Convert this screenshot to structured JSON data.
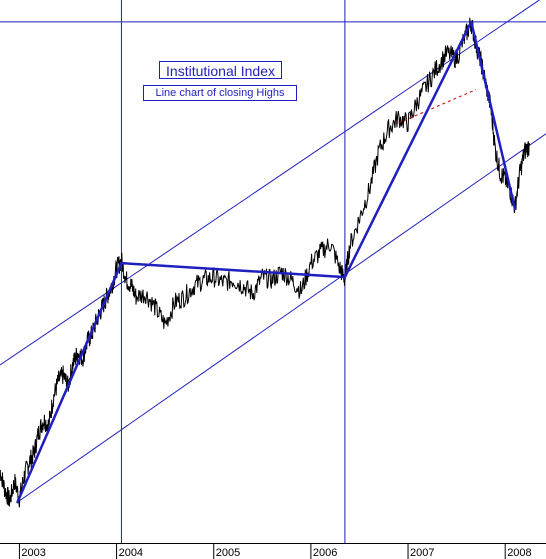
{
  "chart_data": {
    "type": "line",
    "title": "Institutional Index",
    "subtitle": "Line chart of closing Highs",
    "x_tick_labels": [
      "2003",
      "2004",
      "2005",
      "2006",
      "2007",
      "2008"
    ],
    "x_range": [
      2002.8,
      2008.42
    ],
    "series": [
      {
        "values_by_year": [
          [
            2002.8,
            430
          ],
          [
            2002.85,
            395
          ],
          [
            2002.9,
            375
          ],
          [
            2002.95,
            410
          ],
          [
            2003.0,
            380
          ],
          [
            2003.05,
            420
          ],
          [
            2003.1,
            445
          ],
          [
            2003.15,
            460
          ],
          [
            2003.2,
            500
          ],
          [
            2003.25,
            520
          ],
          [
            2003.3,
            510
          ],
          [
            2003.35,
            560
          ],
          [
            2003.4,
            590
          ],
          [
            2003.45,
            600
          ],
          [
            2003.5,
            580
          ],
          [
            2003.55,
            620
          ],
          [
            2003.6,
            640
          ],
          [
            2003.65,
            630
          ],
          [
            2003.7,
            660
          ],
          [
            2003.75,
            675
          ],
          [
            2003.8,
            700
          ],
          [
            2003.85,
            720
          ],
          [
            2003.9,
            740
          ],
          [
            2003.95,
            760
          ],
          [
            2004.0,
            790
          ],
          [
            2004.05,
            805
          ],
          [
            2004.1,
            770
          ],
          [
            2004.15,
            760
          ],
          [
            2004.2,
            740
          ],
          [
            2004.3,
            745
          ],
          [
            2004.4,
            720
          ],
          [
            2004.5,
            690
          ],
          [
            2004.6,
            730
          ],
          [
            2004.7,
            740
          ],
          [
            2004.8,
            760
          ],
          [
            2004.9,
            770
          ],
          [
            2005.0,
            775
          ],
          [
            2005.1,
            765
          ],
          [
            2005.2,
            770
          ],
          [
            2005.3,
            760
          ],
          [
            2005.4,
            745
          ],
          [
            2005.5,
            775
          ],
          [
            2005.6,
            770
          ],
          [
            2005.7,
            785
          ],
          [
            2005.8,
            770
          ],
          [
            2005.9,
            750
          ],
          [
            2006.0,
            800
          ],
          [
            2006.1,
            820
          ],
          [
            2006.2,
            835
          ],
          [
            2006.3,
            790
          ],
          [
            2006.35,
            770
          ],
          [
            2006.4,
            830
          ],
          [
            2006.5,
            880
          ],
          [
            2006.6,
            930
          ],
          [
            2006.7,
            1000
          ],
          [
            2006.8,
            1040
          ],
          [
            2006.9,
            1060
          ],
          [
            2007.0,
            1050
          ],
          [
            2007.1,
            1090
          ],
          [
            2007.2,
            1120
          ],
          [
            2007.3,
            1150
          ],
          [
            2007.4,
            1175
          ],
          [
            2007.5,
            1165
          ],
          [
            2007.6,
            1210
          ],
          [
            2007.65,
            1230
          ],
          [
            2007.7,
            1190
          ],
          [
            2007.75,
            1160
          ],
          [
            2007.8,
            1120
          ],
          [
            2007.85,
            1080
          ],
          [
            2007.9,
            1000
          ],
          [
            2007.95,
            960
          ],
          [
            2008.0,
            950
          ],
          [
            2008.05,
            930
          ],
          [
            2008.1,
            900
          ],
          [
            2008.15,
            960
          ],
          [
            2008.2,
            1000
          ],
          [
            2008.25,
            1010
          ]
        ],
        "color": "#000000"
      }
    ],
    "trendlines": [
      {
        "from": [
          2002.98,
          373
        ],
        "to": [
          2004.05,
          800
        ],
        "color": "#1f1fbf"
      },
      {
        "from": [
          2004.05,
          800
        ],
        "to": [
          2006.35,
          775
        ],
        "color": "#1f1fbf"
      },
      {
        "from": [
          2006.35,
          775
        ],
        "to": [
          2007.65,
          1231
        ],
        "color": "#1f1fbf"
      },
      {
        "from": [
          2007.65,
          1231
        ],
        "to": [
          2008.1,
          897
        ],
        "color": "#1f1fbf"
      }
    ],
    "channel_lines": [
      {
        "from": [
          2002.8,
          618
        ],
        "to": [
          2008.42,
          1278
        ],
        "color": "#1f1fbf"
      },
      {
        "from": [
          2002.98,
          373
        ],
        "to": [
          2008.42,
          1031
        ],
        "color": "#1f1fbf"
      }
    ],
    "horizontal_line": {
      "y": 1231,
      "color": "#1f1fbf"
    },
    "vertical_markers": [
      2004.05,
      2006.35
    ],
    "dashed_line": {
      "from": [
        2006.9,
        1050
      ],
      "to": [
        2007.7,
        1110
      ],
      "color": "#cc0000"
    },
    "y_range": [
      300,
      1270
    ],
    "grid": false
  }
}
